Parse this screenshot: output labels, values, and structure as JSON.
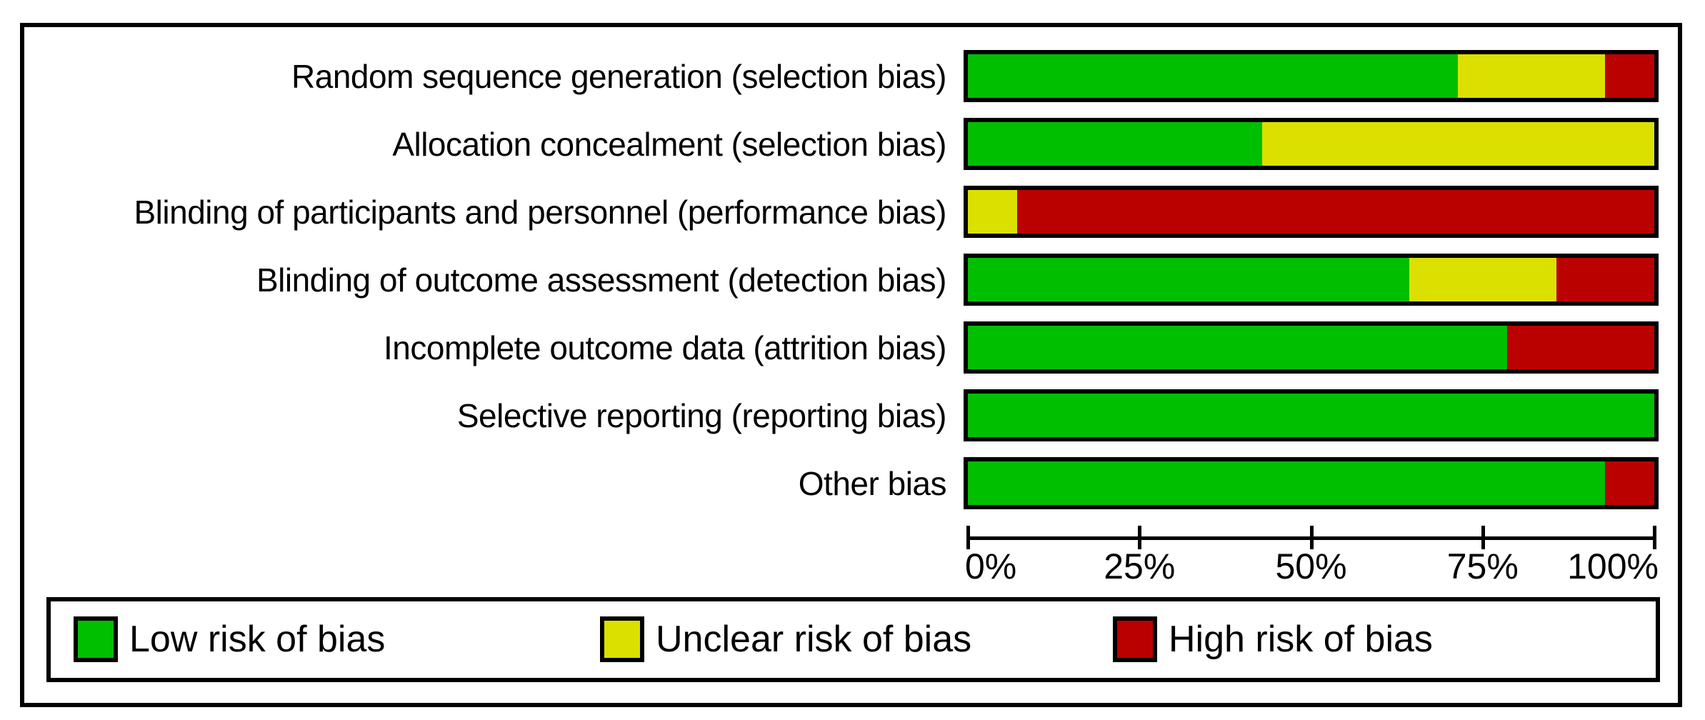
{
  "figure": {
    "background": "#ffffff",
    "frame_color": "#000000"
  },
  "chart_data": {
    "type": "bar",
    "orientation": "horizontal-stacked",
    "unit": "percent",
    "xlim": [
      0,
      100
    ],
    "x_tick_labels": [
      "0%",
      "25%",
      "50%",
      "75%",
      "100%"
    ],
    "grid": false,
    "legend_position": "bottom",
    "categories": [
      "Random sequence generation (selection bias)",
      "Allocation concealment (selection bias)",
      "Blinding of participants and personnel (performance bias)",
      "Blinding of outcome assessment (detection bias)",
      "Incomplete outcome data (attrition bias)",
      "Selective reporting (reporting bias)",
      "Other bias"
    ],
    "series": [
      {
        "name": "Low risk of bias",
        "color": "#00BE00",
        "values": [
          71.43,
          42.86,
          0,
          64.29,
          78.57,
          100,
          92.86
        ]
      },
      {
        "name": "Unclear risk of bias",
        "color": "#DBE000",
        "values": [
          21.43,
          57.14,
          7.14,
          21.43,
          0,
          0,
          0
        ]
      },
      {
        "name": "High risk of bias",
        "color": "#BB0000",
        "values": [
          7.14,
          0,
          92.86,
          14.28,
          21.43,
          0,
          7.14
        ]
      }
    ]
  },
  "legend": {
    "items": [
      {
        "label": "Low risk of bias",
        "color": "#00BE00"
      },
      {
        "label": "Unclear risk of bias",
        "color": "#DBE000"
      },
      {
        "label": "High risk of bias",
        "color": "#BB0000"
      }
    ]
  }
}
